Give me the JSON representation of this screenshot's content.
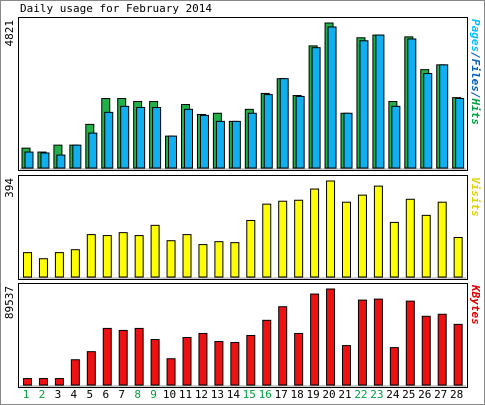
{
  "title": "Daily usage for February 2014",
  "chart_data": [
    {
      "type": "bar",
      "legend_parts": [
        {
          "text": "Pages",
          "color": "#00c0ff"
        },
        {
          "text": "/",
          "color": "#0060c0"
        },
        {
          "text": "Files",
          "color": "#0060c0"
        },
        {
          "text": "/",
          "color": "#0060c0"
        },
        {
          "text": "Hits",
          "color": "#00a040"
        }
      ],
      "series": [
        {
          "name": "Hits",
          "color": "#22b04a",
          "values": [
            660,
            530,
            760,
            760,
            1450,
            2310,
            2310,
            2210,
            2210,
            1060,
            2110,
            1780,
            1820,
            1550,
            1950,
            2480,
            2970,
            2410,
            4060,
            4821,
            1820,
            4330,
            4420,
            2210,
            4360,
            3270,
            3430,
            2340
          ]
        },
        {
          "name": "Files",
          "color": "#10b0f0",
          "values": [
            530,
            500,
            430,
            760,
            1160,
            1850,
            2050,
            2010,
            2010,
            1060,
            1950,
            1750,
            1550,
            1550,
            1820,
            2440,
            2970,
            2380,
            4000,
            4690,
            1820,
            4230,
            4420,
            2050,
            4290,
            3140,
            3430,
            2310
          ]
        }
      ],
      "ylim": [
        0,
        4821
      ],
      "yticks": [
        4821
      ]
    },
    {
      "type": "bar",
      "legend_parts": [
        {
          "text": "Visits",
          "color": "#e0d000"
        }
      ],
      "series": [
        {
          "name": "Visits",
          "color": "#ffff00",
          "values": [
            100,
            75,
            100,
            112,
            174,
            170,
            182,
            170,
            212,
            149,
            174,
            133,
            145,
            141,
            232,
            299,
            311,
            315,
            361,
            394,
            307,
            336,
            373,
            224,
            319,
            253,
            307,
            162
          ]
        }
      ],
      "ylim": [
        0,
        394
      ],
      "yticks": [
        394
      ]
    },
    {
      "type": "bar",
      "legend_parts": [
        {
          "text": "KBytes",
          "color": "#e00000"
        }
      ],
      "series": [
        {
          "name": "KBytes",
          "color": "#ee1111",
          "values": [
            6000,
            6000,
            6000,
            23560,
            31100,
            52780,
            50900,
            52780,
            42400,
            24500,
            44300,
            48070,
            40530,
            39590,
            46180,
            60320,
            73000,
            48070,
            84820,
            89537,
            36750,
            79160,
            80110,
            34870,
            78220,
            64090,
            65980,
            56550
          ]
        }
      ],
      "ylim": [
        0,
        89537
      ],
      "yticks": [
        89537
      ],
      "categories": [
        "1",
        "2",
        "3",
        "4",
        "5",
        "6",
        "7",
        "8",
        "9",
        "10",
        "11",
        "12",
        "13",
        "14",
        "15",
        "16",
        "17",
        "18",
        "19",
        "20",
        "21",
        "22",
        "23",
        "24",
        "25",
        "26",
        "27",
        "28"
      ],
      "category_colors": [
        "#00a040",
        "#00a040",
        "#000000",
        "#000000",
        "#000000",
        "#000000",
        "#000000",
        "#00a040",
        "#00a040",
        "#000000",
        "#000000",
        "#000000",
        "#000000",
        "#000000",
        "#00a040",
        "#00a040",
        "#000000",
        "#000000",
        "#000000",
        "#000000",
        "#000000",
        "#00a040",
        "#00a040",
        "#000000",
        "#000000",
        "#000000",
        "#000000",
        "#000000"
      ]
    }
  ]
}
